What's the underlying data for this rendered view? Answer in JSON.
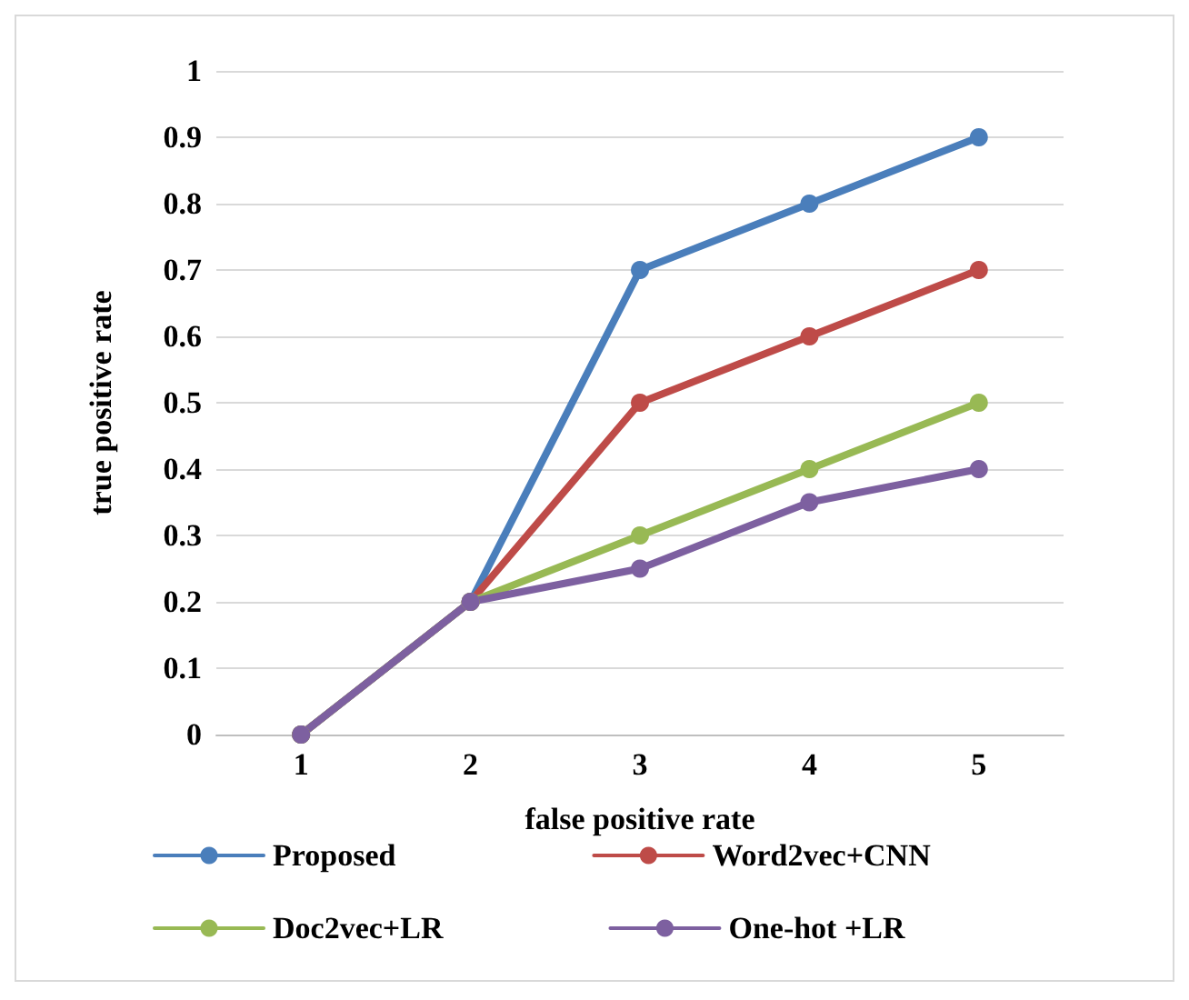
{
  "chart_data": {
    "type": "line",
    "xlabel": "false positive rate",
    "ylabel": "true positive rate",
    "categories": [
      "1",
      "2",
      "3",
      "4",
      "5"
    ],
    "series": [
      {
        "name": "Proposed",
        "color": "#4a7ebb",
        "values": [
          0,
          0.2,
          0.7,
          0.8,
          0.9
        ]
      },
      {
        "name": "Word2vec+CNN",
        "color": "#be4b48",
        "values": [
          0,
          0.2,
          0.5,
          0.6,
          0.7
        ]
      },
      {
        "name": "Doc2vec+LR",
        "color": "#98b954",
        "values": [
          0,
          0.2,
          0.3,
          0.4,
          0.5
        ]
      },
      {
        "name": "One-hot +LR",
        "color": "#7d60a0",
        "values": [
          0,
          0.2,
          0.25,
          0.35,
          0.4
        ]
      }
    ],
    "ylim": [
      0,
      1
    ],
    "yticks": [
      0,
      0.1,
      0.2,
      0.3,
      0.4,
      0.5,
      0.6,
      0.7,
      0.8,
      0.9,
      1
    ],
    "grid": "y",
    "legend": "bottom",
    "marker": "circle",
    "line_style": "solid"
  }
}
